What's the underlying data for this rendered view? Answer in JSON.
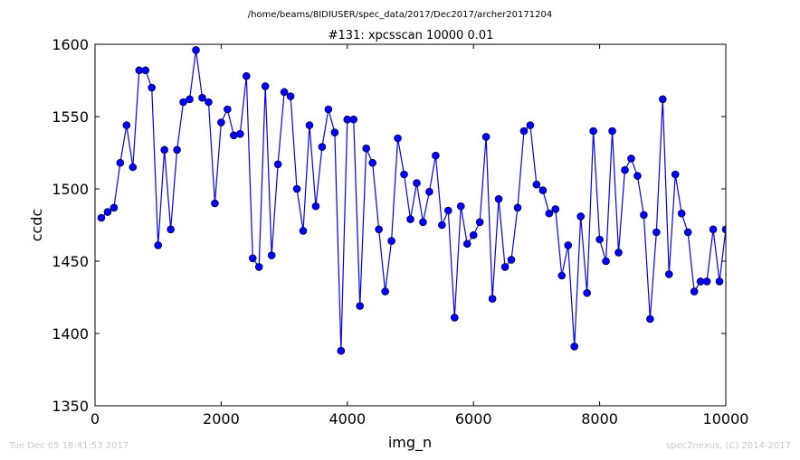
{
  "chart_data": {
    "type": "line",
    "suptitle": "/home/beams/8IDIUSER/spec_data/2017/Dec2017/archer20171204",
    "title": "#131: xpcsscan 10000 0.01",
    "xlabel": "img_n",
    "ylabel": "ccdc",
    "xlim": [
      0,
      10000
    ],
    "ylim": [
      1350,
      1600
    ],
    "xticks": [
      0,
      2000,
      4000,
      6000,
      8000,
      10000
    ],
    "yticks": [
      1350,
      1400,
      1450,
      1500,
      1550,
      1600
    ],
    "grid": false,
    "color": "#0000ff",
    "marker": "circle",
    "series": [
      {
        "x": [
          100,
          200,
          300,
          400,
          500,
          600,
          700,
          800,
          900,
          1000,
          1100,
          1200,
          1300,
          1400,
          1500,
          1600,
          1700,
          1800,
          1900,
          2000,
          2100,
          2200,
          2300,
          2400,
          2500,
          2600,
          2700,
          2800,
          2900,
          3000,
          3100,
          3200,
          3300,
          3400,
          3500,
          3600,
          3700,
          3800,
          3900,
          4000,
          4100,
          4200,
          4300,
          4400,
          4500,
          4600,
          4700,
          4800,
          4900,
          5000,
          5100,
          5200,
          5300,
          5400,
          5500,
          5600,
          5700,
          5800,
          5900,
          6000,
          6100,
          6200,
          6300,
          6400,
          6500,
          6600,
          6700,
          6800,
          6900,
          7000,
          7100,
          7200,
          7300,
          7400,
          7500,
          7600,
          7700,
          7800,
          7900,
          8000,
          8100,
          8200,
          8300,
          8400,
          8500,
          8600,
          8700,
          8800,
          8900,
          9000,
          9100,
          9200,
          9300,
          9400,
          9500,
          9600,
          9700,
          9800,
          9900,
          10000
        ],
        "y": [
          1480,
          1484,
          1487,
          1518,
          1544,
          1515,
          1582,
          1582,
          1570,
          1461,
          1527,
          1472,
          1527,
          1560,
          1562,
          1596,
          1563,
          1560,
          1490,
          1546,
          1555,
          1537,
          1538,
          1578,
          1452,
          1446,
          1571,
          1454,
          1517,
          1567,
          1564,
          1500,
          1471,
          1544,
          1488,
          1529,
          1555,
          1539,
          1388,
          1548,
          1548,
          1419,
          1528,
          1518,
          1472,
          1429,
          1464,
          1535,
          1510,
          1479,
          1504,
          1477,
          1498,
          1523,
          1475,
          1485,
          1411,
          1488,
          1462,
          1468,
          1477,
          1536,
          1424,
          1493,
          1446,
          1451,
          1487,
          1540,
          1544,
          1503,
          1499,
          1483,
          1486,
          1440,
          1461,
          1391,
          1481,
          1428,
          1540,
          1465,
          1450,
          1540,
          1456,
          1513,
          1521,
          1509,
          1482,
          1410,
          1470,
          1562,
          1441,
          1510,
          1483,
          1470,
          1429,
          1436,
          1436,
          1472,
          1436,
          1472
        ]
      }
    ]
  },
  "footer": {
    "left": "Tue Dec 05 18:41:53 2017",
    "right": "spec2nexus, (C) 2014-2017"
  }
}
